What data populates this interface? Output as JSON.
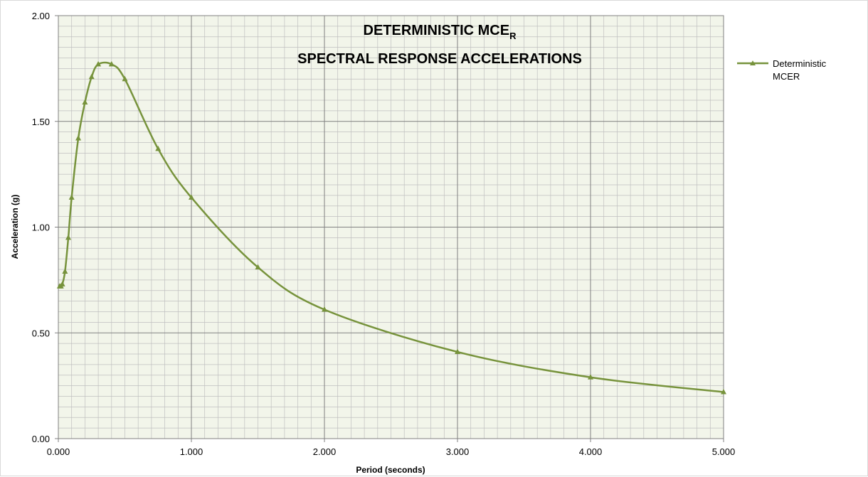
{
  "chart_data": {
    "type": "line",
    "title_line1": "DETERMINISTIC MCE",
    "title_subscript": "R",
    "title_line2": "SPECTRAL RESPONSE ACCELERATIONS",
    "xlabel": "Period (seconds)",
    "ylabel": "Acceleration (g)",
    "xlim": [
      0,
      5
    ],
    "ylim": [
      0,
      2
    ],
    "x_ticks": [
      "0.000",
      "1.000",
      "2.000",
      "3.000",
      "4.000",
      "5.000"
    ],
    "y_ticks": [
      "0.00",
      "0.50",
      "1.00",
      "1.50",
      "2.00"
    ],
    "grid": true,
    "minor_grid": true,
    "legend_position": "right",
    "colors": {
      "series": "#77933C",
      "plot_bg": "#F2F5EA",
      "major_grid": "#808080",
      "minor_grid": "#BFBFBF"
    },
    "series": [
      {
        "name_line1": "Deterministic",
        "name_line2": "MCER",
        "marker": "triangle",
        "x": [
          0.01,
          0.02,
          0.03,
          0.05,
          0.075,
          0.1,
          0.15,
          0.2,
          0.25,
          0.3,
          0.4,
          0.5,
          0.75,
          1.0,
          1.5,
          2.0,
          3.0,
          4.0,
          5.0
        ],
        "y": [
          0.72,
          0.72,
          0.73,
          0.79,
          0.95,
          1.14,
          1.42,
          1.59,
          1.71,
          1.77,
          1.77,
          1.7,
          1.37,
          1.14,
          0.81,
          0.61,
          0.41,
          0.29,
          0.22
        ]
      }
    ]
  }
}
